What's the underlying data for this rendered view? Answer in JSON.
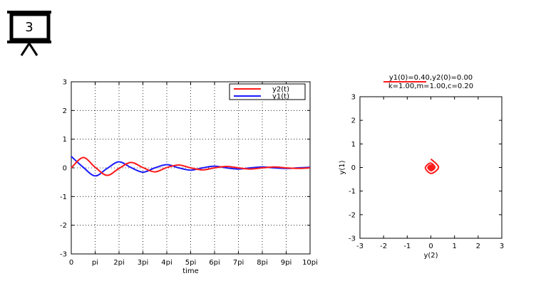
{
  "slide": {
    "number": "3"
  },
  "chart_data": [
    {
      "type": "line",
      "xlabel": "time",
      "ylabel": "",
      "xlim_pi": [
        0,
        10
      ],
      "ylim": [
        -3,
        3
      ],
      "x_ticks": [
        {
          "label": "0",
          "v": 0
        },
        {
          "label": "pi",
          "v": 1
        },
        {
          "label": "2pi",
          "v": 2
        },
        {
          "label": "3pi",
          "v": 3
        },
        {
          "label": "4pi",
          "v": 4
        },
        {
          "label": "5pi",
          "v": 5
        },
        {
          "label": "6pi",
          "v": 6
        },
        {
          "label": "7pi",
          "v": 7
        },
        {
          "label": "8pi",
          "v": 8
        },
        {
          "label": "9pi",
          "v": 9
        },
        {
          "label": "10pi",
          "v": 10
        }
      ],
      "y_ticks": [
        "3",
        "2",
        "1",
        "0",
        "-1",
        "-2",
        "-3"
      ],
      "y_tick_values": [
        3,
        2,
        1,
        0,
        -1,
        -2,
        -3
      ],
      "grid": true,
      "legend_position": "top-right",
      "series": [
        {
          "name": "y2(t)",
          "color": "#ff1a1a",
          "x_pi": [
            0,
            0.5,
            1,
            1.5,
            2,
            2.5,
            3,
            3.5,
            4,
            4.5,
            5,
            5.5,
            6,
            6.5,
            7,
            7.5,
            8,
            8.5,
            9,
            9.5,
            10
          ],
          "values": [
            0,
            0.36,
            0.02,
            -0.26,
            -0.02,
            0.19,
            0.01,
            -0.14,
            0.01,
            0.1,
            0.0,
            -0.07,
            0.0,
            0.05,
            0.0,
            -0.04,
            0.0,
            0.03,
            0.0,
            -0.02,
            0.0
          ]
        },
        {
          "name": "y1(t)",
          "color": "#1a1aff",
          "x_pi": [
            0,
            0.5,
            1,
            1.5,
            2,
            2.5,
            3,
            3.5,
            4,
            4.5,
            5,
            5.5,
            6,
            6.5,
            7,
            7.5,
            8,
            8.5,
            9,
            9.5,
            10
          ],
          "values": [
            0.4,
            0.02,
            -0.28,
            -0.02,
            0.21,
            0.01,
            -0.15,
            0.0,
            0.11,
            0.0,
            -0.08,
            0.0,
            0.06,
            0.0,
            -0.04,
            0.0,
            0.03,
            0.0,
            -0.02,
            0.0,
            0.02
          ]
        }
      ]
    },
    {
      "type": "line",
      "title_line1": "y1(0)=0.40,y2(0)=0.00",
      "title_line2": "k=1.00,m=1.00,c=0.20",
      "xlabel": "y(2)",
      "ylabel": "y(1)",
      "xlim": [
        -3,
        3
      ],
      "ylim": [
        -3,
        3
      ],
      "x_ticks": [
        "-3",
        "-2",
        "-1",
        "0",
        "1",
        "2",
        "3"
      ],
      "y_ticks": [
        "3",
        "2",
        "1",
        "0",
        "-1",
        "-2",
        "-3"
      ],
      "tick_values": [
        -3,
        -2,
        -1,
        0,
        1,
        2,
        3
      ],
      "grid": false,
      "series": [
        {
          "color": "#ff1a1a",
          "x": [
            0,
            0.36,
            0.02,
            -0.26,
            -0.02,
            0.19,
            0.01,
            -0.14,
            0.01,
            0.1,
            0.0,
            -0.07,
            0.0,
            0.05,
            0.0
          ],
          "y": [
            0.4,
            0.02,
            -0.28,
            -0.02,
            0.21,
            0.01,
            -0.15,
            0.0,
            0.11,
            0.0,
            -0.08,
            0.0,
            0.06,
            0.0,
            0.0
          ]
        }
      ],
      "current_point": {
        "x": 0.0,
        "y": 0.0,
        "color": "#ff1a1a"
      }
    }
  ]
}
